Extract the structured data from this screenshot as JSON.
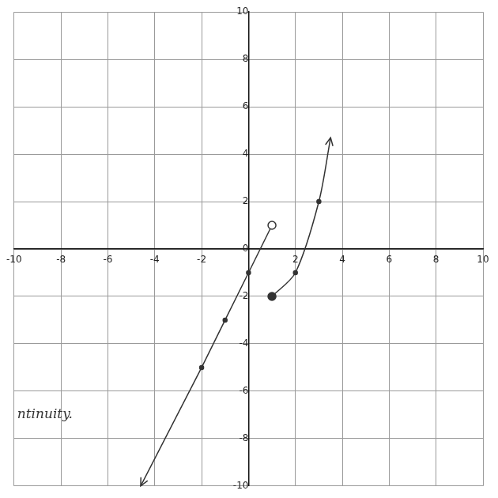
{
  "chart_data": {
    "type": "line",
    "annotations": [
      "ntinuity."
    ],
    "series": [
      {
        "color": "#333333",
        "marker": "circle_open",
        "line_style": "solid",
        "x": [
          -4.6,
          -2,
          -1,
          0,
          1
        ],
        "values": [
          -10,
          -5,
          -3,
          -1,
          1
        ]
      },
      {
        "color": "#333333",
        "marker": "circle",
        "line_style": "solid",
        "x": [
          1,
          2,
          3,
          3.5
        ],
        "values": [
          -2,
          -1,
          2,
          4.7
        ]
      }
    ],
    "xlim": [
      -10,
      10
    ],
    "xticks": [
      -10,
      -8,
      -6,
      -4,
      -2,
      2,
      4,
      6,
      8,
      10
    ],
    "ylim": [
      -10,
      10
    ],
    "yticks": [
      -10,
      -8,
      -6,
      -4,
      -2,
      0,
      2,
      4,
      6,
      8,
      10
    ],
    "grid": true,
    "tick_labels": true
  }
}
